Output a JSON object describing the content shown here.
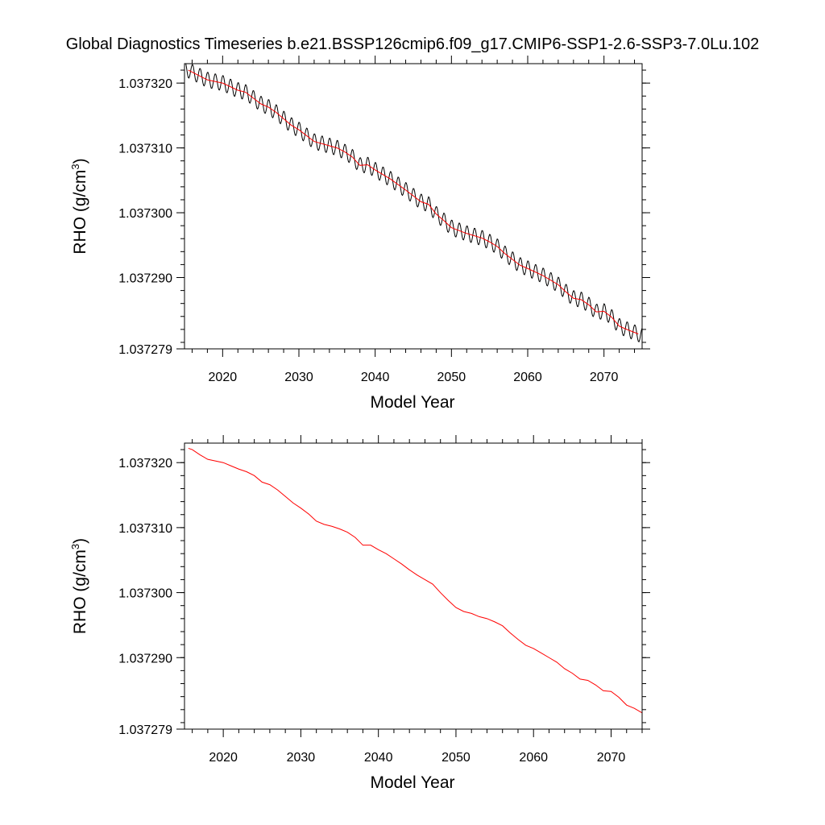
{
  "title": "Global Diagnostics Timeseries b.e21.BSSP126cmip6.f09_g17.CMIP6-SSP1-2.6-SSP3-7.0Lu.102",
  "chart_data": [
    {
      "type": "line",
      "xlabel": "Model Year",
      "ylabel_main": "RHO (g/cm",
      "ylabel_sup": "3",
      "ylabel_close": ")",
      "xlim": [
        2015,
        2075
      ],
      "ylim": [
        1.037279,
        1.037323
      ],
      "xticks": [
        2020,
        2030,
        2040,
        2050,
        2060,
        2070
      ],
      "yticks": [
        {
          "value": 1.037279,
          "label": "1.037279"
        },
        {
          "value": 1.03729,
          "label": "1.037290"
        },
        {
          "value": 1.0373,
          "label": "1.037300"
        },
        {
          "value": 1.03731,
          "label": "1.037310"
        },
        {
          "value": 1.03732,
          "label": "1.037320"
        }
      ],
      "grid": false,
      "series": [
        {
          "name": "",
          "kind": "monthly",
          "color": "#000000",
          "seasonal_amplitude": 1.2e-06,
          "x": [
            2015,
            2075
          ],
          "values_from": "annual"
        },
        {
          "name": "",
          "kind": "annual",
          "color": "#ff0000",
          "x": [
            2015.5,
            2018,
            2020,
            2022,
            2023,
            2025,
            2026,
            2027,
            2028,
            2029,
            2030,
            2032,
            2035,
            2036,
            2037,
            2038,
            2039,
            2040,
            2042,
            2044,
            2046,
            2047,
            2048,
            2049,
            2050,
            2052,
            2054,
            2055,
            2056,
            2057,
            2058,
            2059,
            2060,
            2062,
            2064,
            2065,
            2066,
            2067,
            2068,
            2069,
            2070,
            2071,
            2072,
            2073,
            2074.5
          ],
          "values": [
            1.037322,
            1.0373205,
            1.03732,
            1.0373189,
            1.0373186,
            1.0373168,
            1.0373163,
            1.0373155,
            1.0373145,
            1.0373135,
            1.0373128,
            1.037311,
            1.03731,
            1.0373094,
            1.0373086,
            1.0373073,
            1.0373074,
            1.0373066,
            1.0373052,
            1.0373035,
            1.0373017,
            1.0373013,
            1.0372998,
            1.0372988,
            1.0372977,
            1.0372968,
            1.0372961,
            1.0372955,
            1.0372948,
            1.0372937,
            1.0372928,
            1.0372919,
            1.0372914,
            1.0372903,
            1.0372889,
            1.0372878,
            1.0372868,
            1.0372866,
            1.0372858,
            1.0372847,
            1.0372848,
            1.0372839,
            1.0372825,
            1.037282,
            1.0372813
          ]
        }
      ]
    },
    {
      "type": "line",
      "xlabel": "Model Year",
      "ylabel_main": "RHO (g/cm",
      "ylabel_sup": "3",
      "ylabel_close": ")",
      "xlim": [
        2015,
        2074
      ],
      "ylim": [
        1.037279,
        1.037323
      ],
      "xticks": [
        2020,
        2030,
        2040,
        2050,
        2060,
        2070
      ],
      "yticks": [
        {
          "value": 1.037279,
          "label": "1.037279"
        },
        {
          "value": 1.03729,
          "label": "1.037290"
        },
        {
          "value": 1.0373,
          "label": "1.037300"
        },
        {
          "value": 1.03731,
          "label": "1.037310"
        },
        {
          "value": 1.03732,
          "label": "1.037320"
        }
      ],
      "grid": false,
      "series": [
        {
          "name": "",
          "kind": "annual",
          "color": "#ff0000",
          "x": [
            2015.5,
            2016,
            2017,
            2018,
            2020,
            2021,
            2022,
            2023,
            2024,
            2025,
            2026,
            2027,
            2028,
            2029,
            2030,
            2031,
            2032,
            2033,
            2034,
            2035,
            2036,
            2037,
            2038,
            2039,
            2040,
            2041,
            2042,
            2043,
            2044,
            2045,
            2046,
            2047,
            2048,
            2049,
            2050,
            2051,
            2052,
            2053,
            2054,
            2055,
            2056,
            2057,
            2058,
            2059,
            2060,
            2061,
            2062,
            2063,
            2064,
            2065,
            2066,
            2067,
            2068,
            2069,
            2070,
            2071,
            2072,
            2073,
            2074
          ],
          "values": [
            1.0373222,
            1.037322,
            1.0373212,
            1.0373205,
            1.03732,
            1.0373195,
            1.037319,
            1.0373186,
            1.037318,
            1.037317,
            1.0373166,
            1.0373158,
            1.0373148,
            1.0373138,
            1.037313,
            1.0373121,
            1.037311,
            1.0373105,
            1.0373102,
            1.0373098,
            1.0373093,
            1.0373085,
            1.0373073,
            1.0373073,
            1.0373066,
            1.037306,
            1.0373052,
            1.0373044,
            1.0373035,
            1.0373027,
            1.037302,
            1.0373013,
            1.0373,
            1.0372988,
            1.0372977,
            1.0372971,
            1.0372968,
            1.0372963,
            1.037296,
            1.0372955,
            1.0372949,
            1.0372938,
            1.0372928,
            1.0372919,
            1.0372914,
            1.0372907,
            1.03729,
            1.0372893,
            1.0372883,
            1.0372876,
            1.0372867,
            1.0372865,
            1.0372858,
            1.0372849,
            1.0372848,
            1.0372839,
            1.0372827,
            1.0372822,
            1.0372815
          ]
        }
      ]
    }
  ]
}
